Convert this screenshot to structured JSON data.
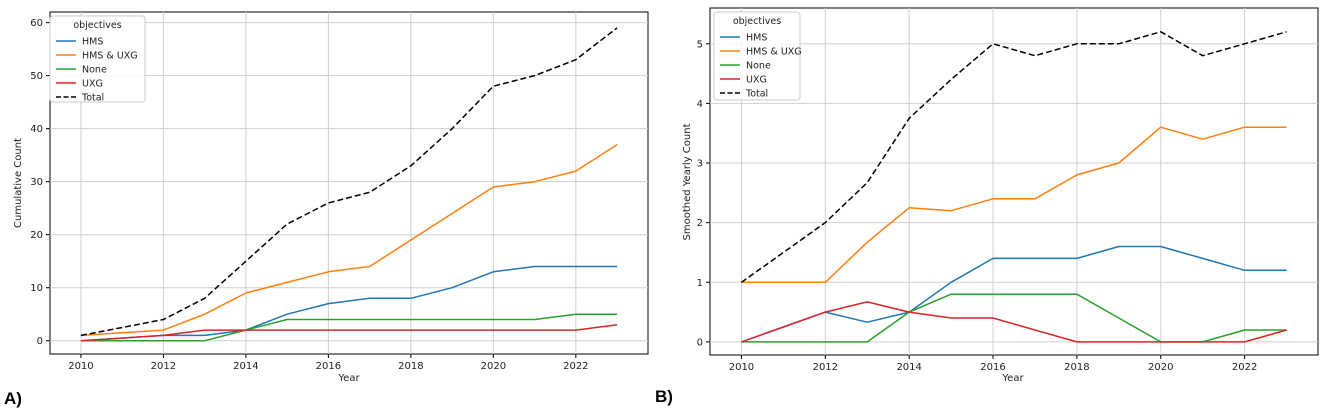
{
  "panels": [
    {
      "label": "A)",
      "chart_data": {
        "type": "line",
        "title": "",
        "xlabel": "Year",
        "ylabel": "Cumulative Count",
        "x": [
          2010,
          2011,
          2012,
          2013,
          2014,
          2015,
          2016,
          2017,
          2018,
          2019,
          2020,
          2021,
          2022,
          2023
        ],
        "xlim": [
          2009.25,
          2023.75
        ],
        "ylim": [
          -2.5,
          62
        ],
        "xticks": [
          2010,
          2012,
          2014,
          2016,
          2018,
          2020,
          2022
        ],
        "yticks": [
          0,
          10,
          20,
          30,
          40,
          50,
          60
        ],
        "grid": true,
        "legend_title": "objectives",
        "legend_position": "top-left",
        "series": [
          {
            "name": "HMS",
            "color": "#1f77b4",
            "dash": "solid",
            "values": [
              0,
              0.5,
              1,
              1,
              2,
              5,
              7,
              8,
              8,
              10,
              13,
              14,
              14,
              14
            ]
          },
          {
            "name": "HMS & UXG",
            "color": "#ff7f0e",
            "dash": "solid",
            "values": [
              1,
              1.5,
              2,
              5,
              9,
              11,
              13,
              14,
              19,
              24,
              29,
              30,
              32,
              37
            ]
          },
          {
            "name": "None",
            "color": "#2ca02c",
            "dash": "solid",
            "values": [
              0,
              0,
              0,
              0,
              2,
              4,
              4,
              4,
              4,
              4,
              4,
              4,
              5,
              5
            ]
          },
          {
            "name": "UXG",
            "color": "#d62728",
            "dash": "solid",
            "values": [
              0,
              0.5,
              1,
              2,
              2,
              2,
              2,
              2,
              2,
              2,
              2,
              2,
              2,
              3
            ]
          },
          {
            "name": "Total",
            "color": "#000000",
            "dash": "dashed",
            "values": [
              1,
              2.5,
              4,
              8,
              15,
              22,
              26,
              28,
              33,
              40,
              48,
              50,
              53,
              59
            ]
          }
        ]
      }
    },
    {
      "label": "B)",
      "chart_data": {
        "type": "line",
        "title": "",
        "xlabel": "Year",
        "ylabel": "Smoothed Yearly Count",
        "x": [
          2010,
          2011,
          2012,
          2013,
          2014,
          2015,
          2016,
          2017,
          2018,
          2019,
          2020,
          2021,
          2022,
          2023
        ],
        "xlim": [
          2009.25,
          2023.75
        ],
        "ylim": [
          -0.22,
          5.6
        ],
        "xticks": [
          2010,
          2012,
          2014,
          2016,
          2018,
          2020,
          2022
        ],
        "yticks": [
          0,
          1,
          2,
          3,
          4,
          5
        ],
        "grid": true,
        "legend_title": "objectives",
        "legend_position": "top-left",
        "series": [
          {
            "name": "HMS",
            "color": "#1f77b4",
            "dash": "solid",
            "values": [
              0,
              0.25,
              0.5,
              0.33,
              0.5,
              1.0,
              1.4,
              1.4,
              1.4,
              1.6,
              1.6,
              1.4,
              1.2,
              1.2
            ]
          },
          {
            "name": "HMS & UXG",
            "color": "#ff7f0e",
            "dash": "solid",
            "values": [
              1,
              1,
              1,
              1.67,
              2.25,
              2.2,
              2.4,
              2.4,
              2.8,
              3.0,
              3.6,
              3.4,
              3.6,
              3.6
            ]
          },
          {
            "name": "None",
            "color": "#2ca02c",
            "dash": "solid",
            "values": [
              0,
              0,
              0,
              0,
              0.5,
              0.8,
              0.8,
              0.8,
              0.8,
              0.4,
              0,
              0,
              0.2,
              0.2
            ]
          },
          {
            "name": "UXG",
            "color": "#d62728",
            "dash": "solid",
            "values": [
              0,
              0.25,
              0.5,
              0.67,
              0.5,
              0.4,
              0.4,
              0.2,
              0,
              0,
              0,
              0,
              0,
              0.2
            ]
          },
          {
            "name": "Total",
            "color": "#000000",
            "dash": "dashed",
            "values": [
              1,
              1.5,
              2,
              2.67,
              3.75,
              4.4,
              5.0,
              4.8,
              5.0,
              5.0,
              5.2,
              4.8,
              5.0,
              5.2
            ]
          }
        ]
      }
    }
  ]
}
